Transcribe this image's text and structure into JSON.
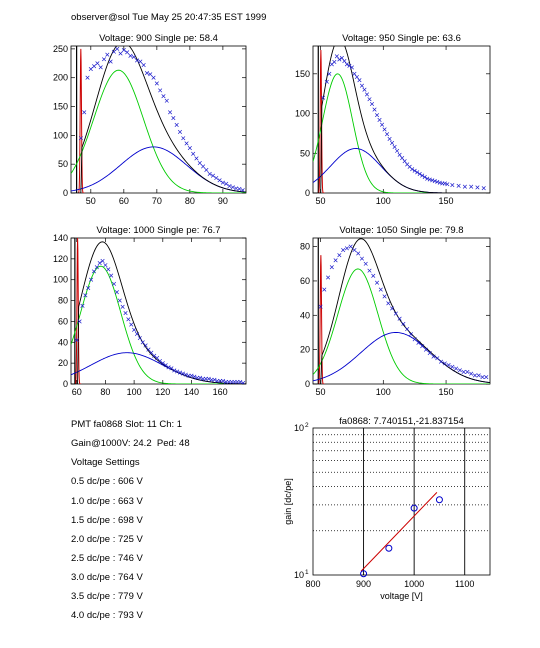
{
  "header": "observer@sol  Tue May 25 20:47:35 EST 1999",
  "info": {
    "lines": [
      "PMT fa0868 Slot: 11 Ch: 1",
      "Gain@1000V: 24.2  Ped: 48",
      "Voltage Settings",
      "0.5 dc/pe : 606 V",
      "1.0 dc/pe : 663 V",
      "1.5 dc/pe : 698 V",
      "2.0 dc/pe : 725 V",
      "2.5 dc/pe : 746 V",
      "3.0 dc/pe : 764 V",
      "3.5 dc/pe : 779 V",
      "4.0 dc/pe : 793 V"
    ]
  },
  "colors": {
    "data": "#1c1ccc",
    "total_fit": "#000000",
    "pedestal": "#cc0000",
    "single_pe": "#00cc00",
    "multi_pe": "#0000cc",
    "gain_fit": "#cc0000"
  },
  "chart_data": [
    {
      "type": "scatter",
      "title": "Voltage: 900 Single pe: 58.4",
      "xlim": [
        44,
        97
      ],
      "ylim": [
        0,
        255
      ],
      "xticks": [
        50,
        60,
        70,
        80,
        90
      ],
      "yticks": [
        0,
        50,
        100,
        150,
        200,
        250
      ],
      "pedestal": {
        "center": 46.5,
        "peak": 250
      },
      "single_pe": {
        "mean": 58.4,
        "sigma": 7.5,
        "amp": 213
      },
      "multi_pe": {
        "mean": 69,
        "sigma": 10,
        "amp": 80
      },
      "data": [
        [
          47,
          95
        ],
        [
          48,
          140
        ],
        [
          49,
          200
        ],
        [
          50,
          215
        ],
        [
          51,
          220
        ],
        [
          52,
          225
        ],
        [
          53,
          218
        ],
        [
          54,
          232
        ],
        [
          55,
          240
        ],
        [
          56,
          228
        ],
        [
          57,
          245
        ],
        [
          58,
          250
        ],
        [
          59,
          242
        ],
        [
          60,
          248
        ],
        [
          61,
          244
        ],
        [
          62,
          238
        ],
        [
          63,
          236
        ],
        [
          64,
          230
        ],
        [
          65,
          228
        ],
        [
          66,
          222
        ],
        [
          67,
          208
        ],
        [
          68,
          206
        ],
        [
          69,
          200
        ],
        [
          70,
          190
        ],
        [
          71,
          178
        ],
        [
          72,
          168
        ],
        [
          73,
          160
        ],
        [
          74,
          140
        ],
        [
          75,
          130
        ],
        [
          76,
          118
        ],
        [
          77,
          106
        ],
        [
          78,
          95
        ],
        [
          79,
          86
        ],
        [
          80,
          78
        ],
        [
          81,
          68
        ],
        [
          82,
          60
        ],
        [
          83,
          52
        ],
        [
          84,
          46
        ],
        [
          85,
          40
        ],
        [
          86,
          33
        ],
        [
          87,
          30
        ],
        [
          88,
          26
        ],
        [
          89,
          22
        ],
        [
          90,
          18
        ],
        [
          91,
          16
        ],
        [
          92,
          12
        ],
        [
          93,
          10
        ],
        [
          94,
          8
        ],
        [
          95,
          7
        ],
        [
          96,
          5
        ]
      ]
    },
    {
      "type": "scatter",
      "title": "Voltage: 950 Single pe: 63.6",
      "xlim": [
        44,
        185
      ],
      "ylim": [
        0,
        185
      ],
      "xticks": [
        50,
        100,
        150
      ],
      "yticks": [
        0,
        50,
        100,
        150
      ],
      "pedestal": {
        "center": 49,
        "peak": 180
      },
      "single_pe": {
        "mean": 63.6,
        "sigma": 12,
        "amp": 150
      },
      "multi_pe": {
        "mean": 78,
        "sigma": 20,
        "amp": 56
      },
      "data": [
        [
          52,
          120
        ],
        [
          55,
          140
        ],
        [
          57,
          150
        ],
        [
          59,
          162
        ],
        [
          61,
          165
        ],
        [
          63,
          172
        ],
        [
          65,
          168
        ],
        [
          67,
          170
        ],
        [
          69,
          166
        ],
        [
          71,
          162
        ],
        [
          73,
          160
        ],
        [
          75,
          158
        ],
        [
          77,
          150
        ],
        [
          79,
          146
        ],
        [
          81,
          142
        ],
        [
          83,
          135
        ],
        [
          85,
          130
        ],
        [
          87,
          124
        ],
        [
          89,
          118
        ],
        [
          91,
          112
        ],
        [
          93,
          105
        ],
        [
          95,
          98
        ],
        [
          97,
          92
        ],
        [
          99,
          86
        ],
        [
          101,
          80
        ],
        [
          103,
          74
        ],
        [
          105,
          68
        ],
        [
          107,
          63
        ],
        [
          109,
          58
        ],
        [
          111,
          53
        ],
        [
          113,
          48
        ],
        [
          115,
          44
        ],
        [
          117,
          40
        ],
        [
          119,
          36
        ],
        [
          121,
          33
        ],
        [
          123,
          30
        ],
        [
          125,
          28
        ],
        [
          127,
          26
        ],
        [
          129,
          24
        ],
        [
          131,
          22
        ],
        [
          133,
          20
        ],
        [
          135,
          18
        ],
        [
          137,
          17
        ],
        [
          139,
          16
        ],
        [
          141,
          15
        ],
        [
          143,
          14
        ],
        [
          145,
          13
        ],
        [
          147,
          12
        ],
        [
          149,
          12
        ],
        [
          151,
          11
        ],
        [
          155,
          10
        ],
        [
          160,
          9
        ],
        [
          165,
          8
        ],
        [
          170,
          8
        ],
        [
          175,
          7
        ],
        [
          180,
          6
        ]
      ]
    },
    {
      "type": "scatter",
      "title": "Voltage: 1000 Single pe: 76.7",
      "xlim": [
        56,
        178
      ],
      "ylim": [
        0,
        140
      ],
      "xticks": [
        60,
        80,
        100,
        120,
        140,
        160
      ],
      "yticks": [
        0,
        20,
        40,
        60,
        80,
        100,
        120,
        140
      ],
      "pedestal": {
        "center": 59.5,
        "peak": 140
      },
      "single_pe": {
        "mean": 76.7,
        "sigma": 14,
        "amp": 113
      },
      "multi_pe": {
        "mean": 95,
        "sigma": 25,
        "amp": 30
      },
      "data": [
        [
          60,
          42
        ],
        [
          62,
          60
        ],
        [
          64,
          75
        ],
        [
          66,
          85
        ],
        [
          68,
          92
        ],
        [
          70,
          100
        ],
        [
          72,
          108
        ],
        [
          74,
          112
        ],
        [
          76,
          116
        ],
        [
          78,
          118
        ],
        [
          80,
          114
        ],
        [
          82,
          110
        ],
        [
          84,
          104
        ],
        [
          86,
          96
        ],
        [
          88,
          88
        ],
        [
          90,
          80
        ],
        [
          92,
          74
        ],
        [
          94,
          68
        ],
        [
          96,
          62
        ],
        [
          98,
          57
        ],
        [
          100,
          52
        ],
        [
          102,
          48
        ],
        [
          104,
          44
        ],
        [
          106,
          40
        ],
        [
          108,
          37
        ],
        [
          110,
          33
        ],
        [
          112,
          30
        ],
        [
          114,
          27
        ],
        [
          116,
          25
        ],
        [
          118,
          22
        ],
        [
          120,
          20
        ],
        [
          122,
          18
        ],
        [
          124,
          16
        ],
        [
          126,
          15
        ],
        [
          128,
          13
        ],
        [
          130,
          12
        ],
        [
          132,
          11
        ],
        [
          134,
          10
        ],
        [
          136,
          9
        ],
        [
          138,
          8
        ],
        [
          140,
          8
        ],
        [
          142,
          7
        ],
        [
          144,
          6
        ],
        [
          146,
          6
        ],
        [
          148,
          5
        ],
        [
          150,
          5
        ],
        [
          152,
          5
        ],
        [
          154,
          4
        ],
        [
          156,
          4
        ],
        [
          158,
          3
        ],
        [
          160,
          3
        ],
        [
          162,
          3
        ],
        [
          164,
          2
        ],
        [
          166,
          2
        ],
        [
          168,
          2
        ],
        [
          170,
          2
        ],
        [
          172,
          2
        ],
        [
          174,
          2
        ],
        [
          176,
          1
        ]
      ]
    },
    {
      "type": "scatter",
      "title": "Voltage: 1050 Single pe: 79.8",
      "xlim": [
        44,
        185
      ],
      "ylim": [
        0,
        85
      ],
      "xticks": [
        50,
        100,
        150
      ],
      "yticks": [
        0,
        20,
        40,
        60,
        80
      ],
      "pedestal": {
        "center": 49,
        "peak": 75
      },
      "single_pe": {
        "mean": 79.8,
        "sigma": 16,
        "amp": 67
      },
      "multi_pe": {
        "mean": 110,
        "sigma": 28,
        "amp": 30
      },
      "data": [
        [
          50,
          45
        ],
        [
          53,
          55
        ],
        [
          56,
          62
        ],
        [
          59,
          68
        ],
        [
          62,
          72
        ],
        [
          65,
          75
        ],
        [
          68,
          78
        ],
        [
          71,
          79
        ],
        [
          74,
          80
        ],
        [
          77,
          78
        ],
        [
          80,
          76
        ],
        [
          83,
          73
        ],
        [
          86,
          70
        ],
        [
          89,
          66
        ],
        [
          92,
          63
        ],
        [
          95,
          59
        ],
        [
          98,
          55
        ],
        [
          101,
          51
        ],
        [
          104,
          47
        ],
        [
          107,
          44
        ],
        [
          110,
          41
        ],
        [
          113,
          38
        ],
        [
          116,
          35
        ],
        [
          119,
          32
        ],
        [
          122,
          29
        ],
        [
          125,
          26
        ],
        [
          128,
          24
        ],
        [
          131,
          22
        ],
        [
          134,
          20
        ],
        [
          137,
          18
        ],
        [
          140,
          16
        ],
        [
          143,
          15
        ],
        [
          146,
          13
        ],
        [
          149,
          12
        ],
        [
          152,
          11
        ],
        [
          155,
          10
        ],
        [
          158,
          9
        ],
        [
          161,
          8
        ],
        [
          164,
          7
        ],
        [
          167,
          7
        ],
        [
          170,
          6
        ],
        [
          173,
          5
        ],
        [
          176,
          5
        ],
        [
          179,
          4
        ],
        [
          182,
          4
        ]
      ]
    },
    {
      "type": "scatter",
      "title": "fa0868: 7.740151,-21.837154",
      "xlabel": "voltage [V]",
      "ylabel": "gain [dc/pe]",
      "xlim": [
        800,
        1150
      ],
      "ylim": [
        10,
        100
      ],
      "yscale": "log",
      "xticks": [
        800,
        900,
        1000,
        1100
      ],
      "ytick_labels": [
        {
          "value": 10,
          "label": "10",
          "sup": "1"
        },
        {
          "value": 100,
          "label": "10",
          "sup": "2"
        }
      ],
      "x": [
        900,
        950,
        1000,
        1050
      ],
      "y": [
        10.2,
        15.2,
        28.5,
        32.5
      ],
      "fit": {
        "x": [
          895,
          1045
        ],
        "y": [
          10.6,
          36.5
        ]
      }
    }
  ]
}
